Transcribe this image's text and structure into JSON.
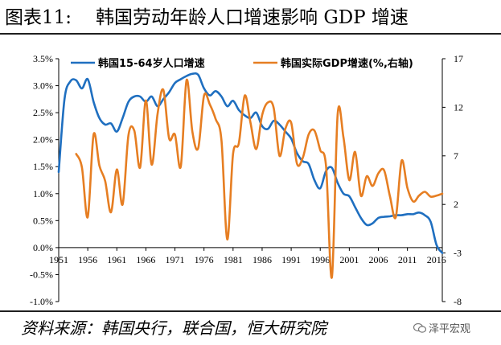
{
  "header": {
    "figure_label": "图表11:",
    "title": "韩国劳动年龄人口增速影响 GDP 增速"
  },
  "footer": {
    "source": "资料来源：韩国央行，联合国，恒大研究院",
    "watermark": "泽平宏观",
    "watermark_icon": "chat-bubble-icon"
  },
  "chart_data": {
    "type": "line",
    "title": "",
    "xlabel": "",
    "ylabel": "",
    "x_ticks": [
      "1951",
      "1956",
      "1961",
      "1966",
      "1971",
      "1976",
      "1981",
      "1986",
      "1991",
      "1996",
      "2001",
      "2006",
      "2011",
      "2016"
    ],
    "ylim_left": [
      -1.0,
      3.5
    ],
    "y_ticks_left": [
      "-1.0%",
      "-0.5%",
      "0.0%",
      "0.5%",
      "1.0%",
      "1.5%",
      "2.0%",
      "2.5%",
      "3.0%",
      "3.5%"
    ],
    "ylim_right": [
      -8,
      17
    ],
    "y_ticks_right": [
      "17",
      "12",
      "7",
      "2",
      "-3",
      "-8"
    ],
    "grid": false,
    "legend_position": "top",
    "series": [
      {
        "name": "韩国15-64岁人口增速",
        "axis": "left",
        "color": "#1f6fc0",
        "x": [
          1951,
          1952,
          1953,
          1954,
          1955,
          1956,
          1957,
          1958,
          1959,
          1960,
          1961,
          1962,
          1963,
          1964,
          1965,
          1966,
          1967,
          1968,
          1969,
          1970,
          1971,
          1972,
          1973,
          1974,
          1975,
          1976,
          1977,
          1978,
          1979,
          1980,
          1981,
          1982,
          1983,
          1984,
          1985,
          1986,
          1987,
          1988,
          1989,
          1990,
          1991,
          1992,
          1993,
          1994,
          1995,
          1996,
          1997,
          1998,
          1999,
          2000,
          2001,
          2002,
          2003,
          2004,
          2005,
          2006,
          2007,
          2008,
          2009,
          2010,
          2011,
          2012,
          2013,
          2014,
          2015,
          2016,
          2017
        ],
        "values": [
          1.4,
          2.75,
          3.08,
          3.1,
          2.95,
          3.12,
          2.7,
          2.4,
          2.28,
          2.3,
          2.15,
          2.4,
          2.7,
          2.8,
          2.8,
          2.7,
          2.8,
          2.62,
          2.75,
          2.88,
          3.05,
          3.12,
          3.18,
          3.22,
          3.2,
          2.95,
          2.82,
          2.9,
          2.8,
          2.62,
          2.72,
          2.55,
          2.45,
          2.4,
          2.5,
          2.25,
          2.2,
          2.35,
          2.28,
          2.15,
          2.02,
          1.75,
          1.6,
          1.55,
          1.25,
          1.1,
          1.42,
          1.48,
          1.2,
          1.0,
          0.95,
          0.75,
          0.55,
          0.42,
          0.45,
          0.55,
          0.57,
          0.58,
          0.6,
          0.6,
          0.62,
          0.62,
          0.65,
          0.6,
          0.48,
          0.05,
          -0.1
        ]
      },
      {
        "name": "韩国实际GDP增速(%,右轴)",
        "axis": "right",
        "color": "#e67e22",
        "x": [
          1954,
          1955,
          1956,
          1957,
          1958,
          1959,
          1960,
          1961,
          1962,
          1963,
          1964,
          1965,
          1966,
          1967,
          1968,
          1969,
          1970,
          1971,
          1972,
          1973,
          1974,
          1975,
          1976,
          1977,
          1978,
          1979,
          1980,
          1981,
          1982,
          1983,
          1984,
          1985,
          1986,
          1987,
          1988,
          1989,
          1990,
          1991,
          1992,
          1993,
          1994,
          1995,
          1996,
          1997,
          1998,
          1999,
          2000,
          2001,
          2002,
          2003,
          2004,
          2005,
          2006,
          2007,
          2008,
          2009,
          2010,
          2011,
          2012,
          2013,
          2014,
          2015,
          2016,
          2017
        ],
        "values": [
          7.2,
          5.8,
          0.7,
          9.2,
          6.0,
          4.4,
          1.2,
          5.6,
          2.0,
          9.1,
          9.6,
          5.8,
          12.7,
          6.1,
          11.3,
          13.8,
          8.8,
          9.2,
          5.9,
          14.8,
          9.5,
          7.8,
          13.2,
          12.3,
          10.8,
          8.6,
          -1.6,
          7.2,
          8.3,
          13.2,
          10.4,
          7.7,
          11.2,
          12.5,
          11.9,
          7.0,
          9.8,
          10.4,
          6.2,
          6.8,
          9.2,
          9.6,
          7.6,
          5.9,
          -5.5,
          11.3,
          8.9,
          4.5,
          7.4,
          2.9,
          4.9,
          3.9,
          5.2,
          5.5,
          2.8,
          0.7,
          6.5,
          3.7,
          2.3,
          2.9,
          3.3,
          2.8,
          2.9,
          3.1
        ]
      }
    ]
  }
}
